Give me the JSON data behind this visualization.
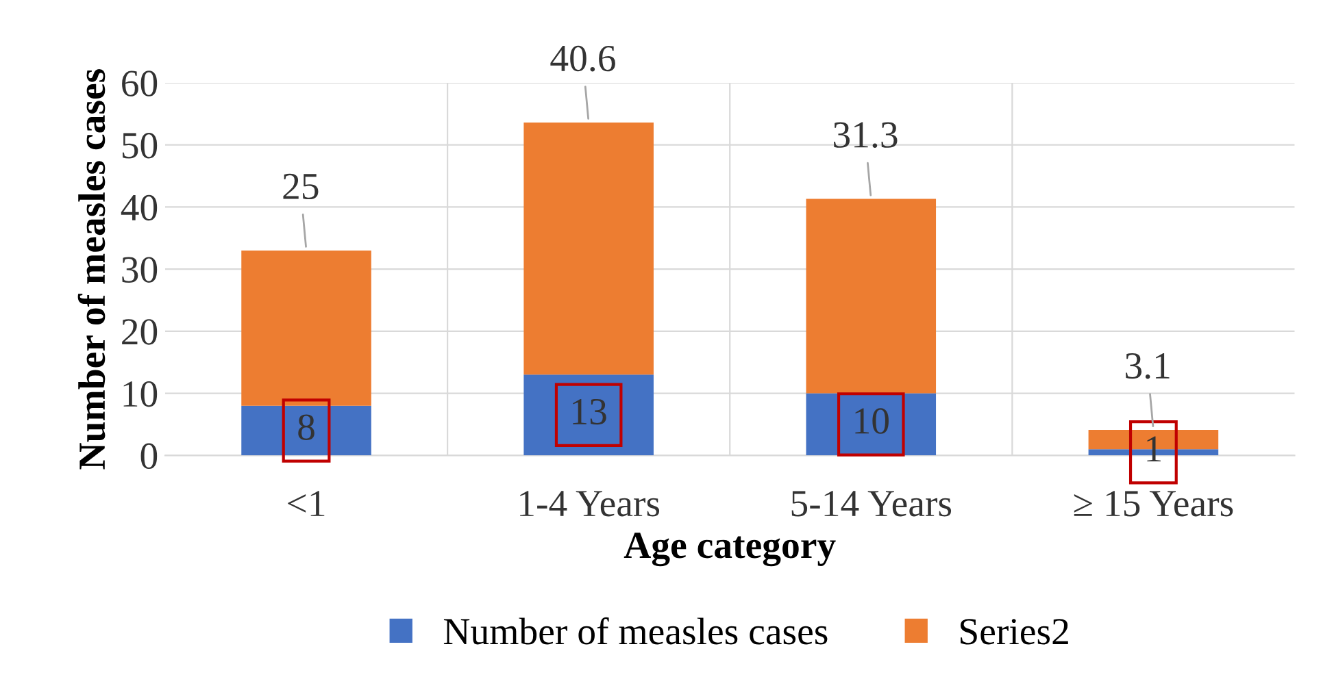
{
  "chart_data": {
    "type": "bar",
    "stacked": true,
    "xlabel": "Age category",
    "ylabel": "Number of measles cases",
    "categories": [
      "<1",
      "1-4 Years",
      "5-14 Years",
      "≥ 15 Years"
    ],
    "series": [
      {
        "name": "Number of measles cases",
        "color": "#4472c4",
        "values": [
          8,
          13,
          10,
          1
        ]
      },
      {
        "name": "Series2",
        "color": "#ed7d31",
        "values": [
          25,
          40.6,
          31.3,
          3.1
        ]
      }
    ],
    "ylim": [
      0,
      60
    ],
    "yticks": [
      0,
      10,
      20,
      30,
      40,
      50,
      60
    ],
    "grid": true,
    "legend": "bottom",
    "data_labels": true
  }
}
